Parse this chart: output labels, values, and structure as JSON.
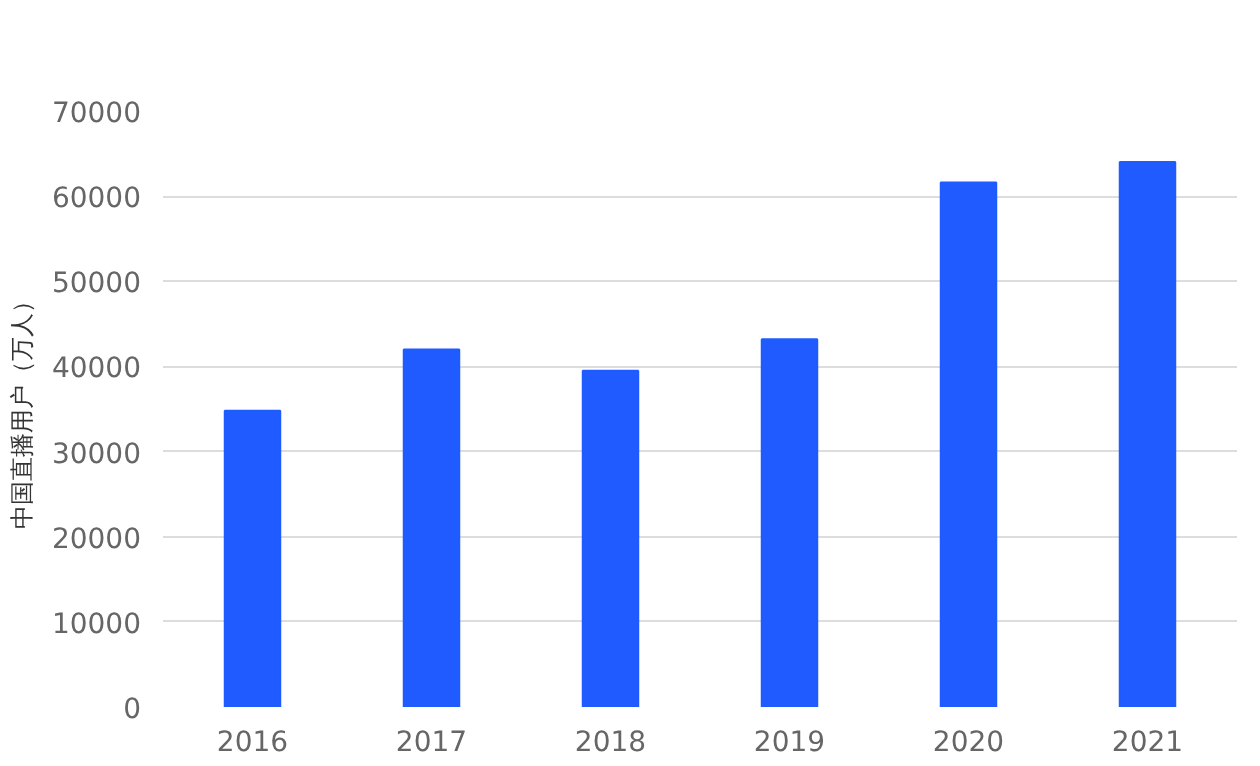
{
  "chart_data": {
    "type": "bar",
    "ylabel": "中国直播用户（万人）",
    "categories": [
      "2016",
      "2017",
      "2018",
      "2019",
      "2020",
      "2021"
    ],
    "values": [
      34800,
      42000,
      39500,
      43200,
      61600,
      64000
    ],
    "color": "#1f5bff",
    "ylim": [
      0,
      70000
    ],
    "yticks": [
      0,
      10000,
      20000,
      30000,
      40000,
      50000,
      60000,
      70000
    ],
    "grid": "y"
  }
}
